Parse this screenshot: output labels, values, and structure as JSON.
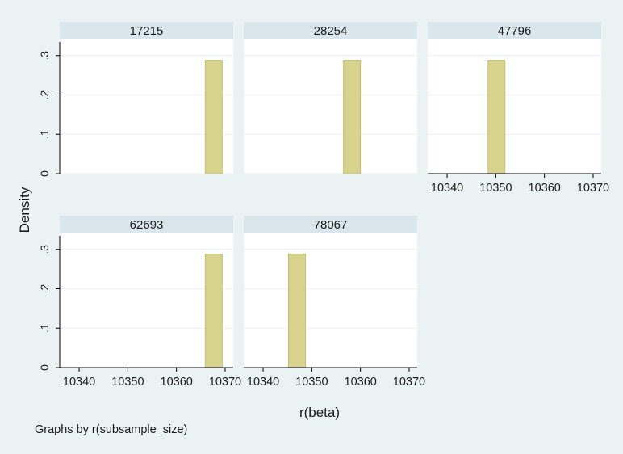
{
  "chart_data": {
    "type": "bar",
    "subtype": "histogram-by-group",
    "ylabel": "Density",
    "xlabel": "r(beta)",
    "note": "Graphs by r(subsample_size)",
    "xlim": [
      10338,
      10371
    ],
    "ylim": [
      0,
      0.32
    ],
    "xticks": [
      10340,
      10350,
      10360,
      10370
    ],
    "yticks": [
      0,
      0.1,
      0.2,
      0.3
    ],
    "ytick_labels": [
      "0",
      ".1",
      ".2",
      ".3"
    ],
    "bar_color": "#d7d38c",
    "bar_edge_color": "#bcb56a",
    "panels": [
      {
        "title": "17215",
        "bins": [
          {
            "x0": 10365.9,
            "x1": 10369.4,
            "density": 0.288
          }
        ]
      },
      {
        "title": "28254",
        "bins": [
          {
            "x0": 10356.5,
            "x1": 10360.0,
            "density": 0.288
          }
        ]
      },
      {
        "title": "47796",
        "bins": [
          {
            "x0": 10348.4,
            "x1": 10351.9,
            "density": 0.288
          }
        ]
      },
      {
        "title": "62693",
        "bins": [
          {
            "x0": 10365.9,
            "x1": 10369.4,
            "density": 0.288
          }
        ]
      },
      {
        "title": "78067",
        "bins": [
          {
            "x0": 10345.2,
            "x1": 10348.7,
            "density": 0.288
          }
        ]
      }
    ]
  }
}
